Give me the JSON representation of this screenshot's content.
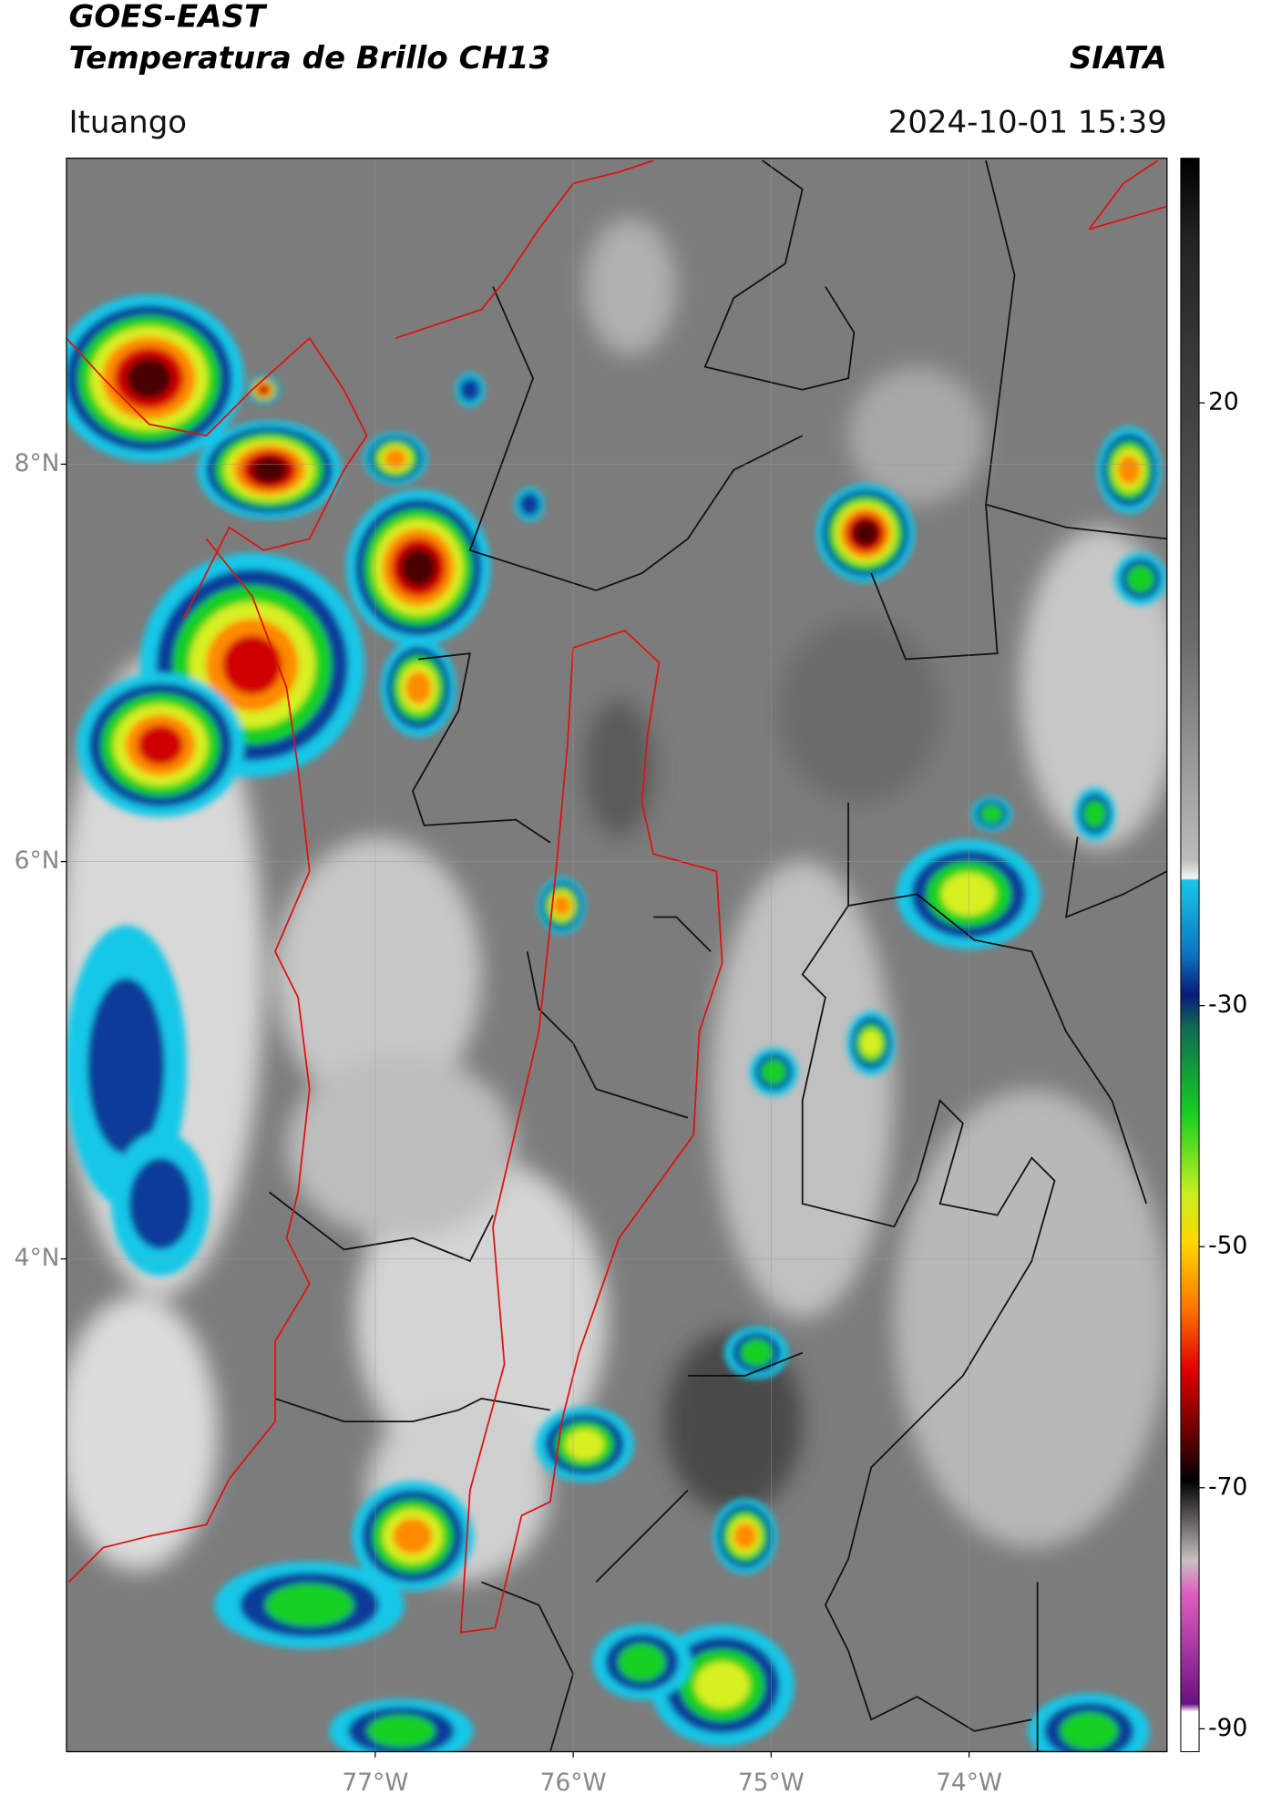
{
  "header": {
    "title": "GOES-EAST",
    "subtitle": "Temperatura de Brillo CH13",
    "source": "SIATA",
    "location": "Ituango",
    "datetime": "2024-10-01 15:39"
  },
  "map": {
    "xlim": [
      -78.56,
      -73.0
    ],
    "ylim": [
      1.52,
      9.54
    ],
    "xticks": [
      {
        "value": -77,
        "label": "77°W"
      },
      {
        "value": -76,
        "label": "76°W"
      },
      {
        "value": -75,
        "label": "75°W"
      },
      {
        "value": -74,
        "label": "74°W"
      }
    ],
    "yticks": [
      {
        "value": 8,
        "label": "8°N"
      },
      {
        "value": 6,
        "label": "6°N"
      },
      {
        "value": 4,
        "label": "4°N"
      }
    ],
    "grid": true,
    "colorbar": {
      "lim": [
        40.3,
        -91.9
      ],
      "ticks": [
        20,
        -30,
        -50,
        -70,
        -90
      ]
    }
  }
}
